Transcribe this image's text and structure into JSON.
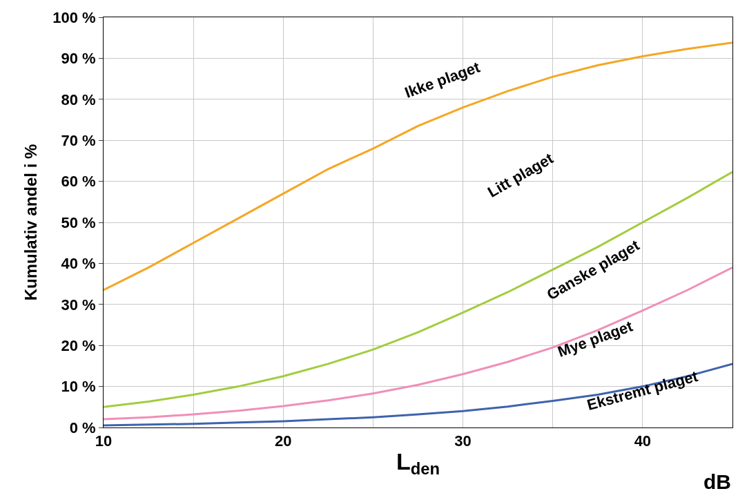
{
  "chart_data": {
    "type": "line",
    "xlabel": "L$_{den}$",
    "ylabel": "Kumulativ andel i %",
    "x": [
      10,
      12.5,
      15,
      17.5,
      20,
      22.5,
      25,
      27.5,
      30,
      32.5,
      35,
      37.5,
      40,
      42.5,
      45
    ],
    "series": [
      {
        "color": "#f5a623",
        "values": [
          33.5,
          39,
          45,
          51,
          57,
          63,
          68,
          73.5,
          78,
          82,
          85.5,
          88.3,
          90.5,
          92.3,
          93.8
        ]
      },
      {
        "color": "#a3cc3e",
        "values": [
          5,
          6.3,
          8,
          10,
          12.5,
          15.5,
          19,
          23.2,
          28,
          33,
          38.5,
          44,
          50,
          56,
          62.3
        ]
      },
      {
        "color": "#ef8fb8",
        "values": [
          2,
          2.5,
          3.2,
          4.1,
          5.2,
          6.6,
          8.3,
          10.4,
          13,
          16,
          19.5,
          23.7,
          28.5,
          33.5,
          39
        ]
      },
      {
        "color": "#3e63ad",
        "values": [
          0.5,
          0.7,
          0.9,
          1.2,
          1.5,
          2,
          2.5,
          3.2,
          4,
          5.1,
          6.5,
          8,
          10,
          12.5,
          15.5
        ]
      }
    ],
    "xlim": [
      10,
      45
    ],
    "xticks": [
      10,
      {
        "value": 15,
        "label": null
      },
      20,
      {
        "value": 25,
        "label": null
      },
      30,
      {
        "value": 35,
        "label": null
      },
      40,
      {
        "value": 45,
        "label": null
      }
    ],
    "ylim": [
      0,
      100
    ],
    "yticks": [
      {
        "value": 0,
        "label": "0 %"
      },
      {
        "value": 10,
        "label": "10 %"
      },
      {
        "value": 20,
        "label": "20 %"
      },
      {
        "value": 30,
        "label": "30 %"
      },
      {
        "value": 40,
        "label": "40 %"
      },
      {
        "value": 50,
        "label": "50 %"
      },
      {
        "value": 60,
        "label": "60 %"
      },
      {
        "value": 70,
        "label": "70 %"
      },
      {
        "value": 80,
        "label": "80 %"
      },
      {
        "value": 90,
        "label": "90 %"
      },
      {
        "value": 100,
        "label": "100 %"
      }
    ],
    "annotations": [
      "Ikke plaget",
      "Litt plaget",
      "Ganske plaget",
      "Mye plaget",
      "Ekstremt plaget",
      "dB"
    ],
    "grid": true,
    "marker": "none",
    "line_style": "solid"
  }
}
